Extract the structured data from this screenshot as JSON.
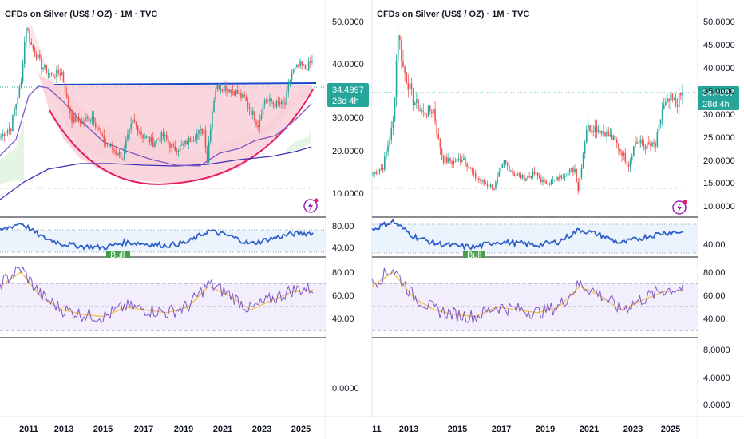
{
  "colors": {
    "bull": "#26a69a",
    "bear": "#ef5350",
    "blue_line": "#1848c8",
    "ma_purple": "#3f2fb8",
    "ma_violet": "#7e57c2",
    "rsi_line": "#7e57c2",
    "rsi_ma": "#f2c04e",
    "cup_fill": "#f8c9d3",
    "cup_arc": "#e91e63",
    "price_badge": "#26a69a",
    "band_fill": "#e3f0fb",
    "rsi_band": "#efeafb",
    "osc_line": "#2f5fc9",
    "bull_tag": "#43a047",
    "stop_fill": "#fbd7dc",
    "stop_line": "#ef5350"
  },
  "left": {
    "title": "CFDs on Silver (US$ / OZ) · 1M · TVC",
    "price_badge": "34.4997",
    "countdown": "28d 4h",
    "y_ticks_price": [
      "50.0000",
      "40.0000",
      "30.0000",
      "20.0000",
      "10.0000"
    ],
    "y_ticks_osc": [
      "80.00",
      "40.00"
    ],
    "y_ticks_rsi": [
      "80.00",
      "60.00",
      "40.00"
    ],
    "y_ticks_bottom": [
      "0.0000"
    ],
    "x_ticks": [
      "2011",
      "2013",
      "2015",
      "2017",
      "2019",
      "2021",
      "2023",
      "2025"
    ],
    "bull_tag": "Bull"
  },
  "right": {
    "title": "CFDs on Silver (US$ / OZ) · 1M · TVC",
    "price_badge": "34.4997",
    "countdown": "28d 4h",
    "y_ticks_price": [
      "50.0000",
      "45.0000",
      "40.0000",
      "35.0000",
      "30.0000",
      "25.0000",
      "20.0000",
      "15.0000",
      "10.0000"
    ],
    "y_ticks_osc": [
      "40.00"
    ],
    "y_ticks_rsi": [
      "80.00",
      "60.00",
      "40.00"
    ],
    "y_ticks_bottom": [
      "8.0000",
      "4.0000",
      "0.0000"
    ],
    "x_ticks": [
      "11",
      "2013",
      "2015",
      "2017",
      "2019",
      "2021",
      "2023",
      "2025"
    ],
    "bull_tag": "Bull"
  },
  "chart_data": [
    {
      "type": "candlestick",
      "title": "CFDs on Silver (US$ / OZ) · 1M · TVC",
      "x": [
        "2010-01",
        "2010-07",
        "2011-01",
        "2011-04",
        "2011-07",
        "2012-01",
        "2012-07",
        "2013-01",
        "2013-04",
        "2013-07",
        "2014-01",
        "2014-07",
        "2015-01",
        "2015-07",
        "2016-01",
        "2016-07",
        "2017-01",
        "2017-07",
        "2018-01",
        "2018-07",
        "2019-01",
        "2019-07",
        "2020-01",
        "2020-03",
        "2020-08",
        "2021-01",
        "2021-07",
        "2022-01",
        "2022-09",
        "2023-01",
        "2023-07",
        "2024-01",
        "2024-05",
        "2024-10",
        "2025-01",
        "2025-05"
      ],
      "close": [
        17,
        18.5,
        28,
        48,
        40,
        33,
        30,
        31,
        24,
        20,
        19.5,
        20.5,
        16.5,
        15,
        14,
        19.5,
        17,
        16,
        17,
        15,
        15.5,
        17,
        18,
        13.5,
        27,
        27,
        26,
        24,
        19,
        24,
        23,
        23,
        31,
        33,
        32,
        34.5
      ],
      "ylim": [
        8,
        52
      ],
      "price_last": 34.4997
    },
    {
      "type": "line",
      "name": "RSI",
      "x": [
        "2010",
        "2011",
        "2012",
        "2013",
        "2014",
        "2015",
        "2016",
        "2017",
        "2018",
        "2019",
        "2020",
        "2021",
        "2022",
        "2023",
        "2024",
        "2025"
      ],
      "values": [
        70,
        85,
        58,
        45,
        40,
        38,
        48,
        45,
        42,
        48,
        70,
        60,
        45,
        55,
        64,
        66
      ],
      "ylim": [
        20,
        90
      ]
    }
  ]
}
